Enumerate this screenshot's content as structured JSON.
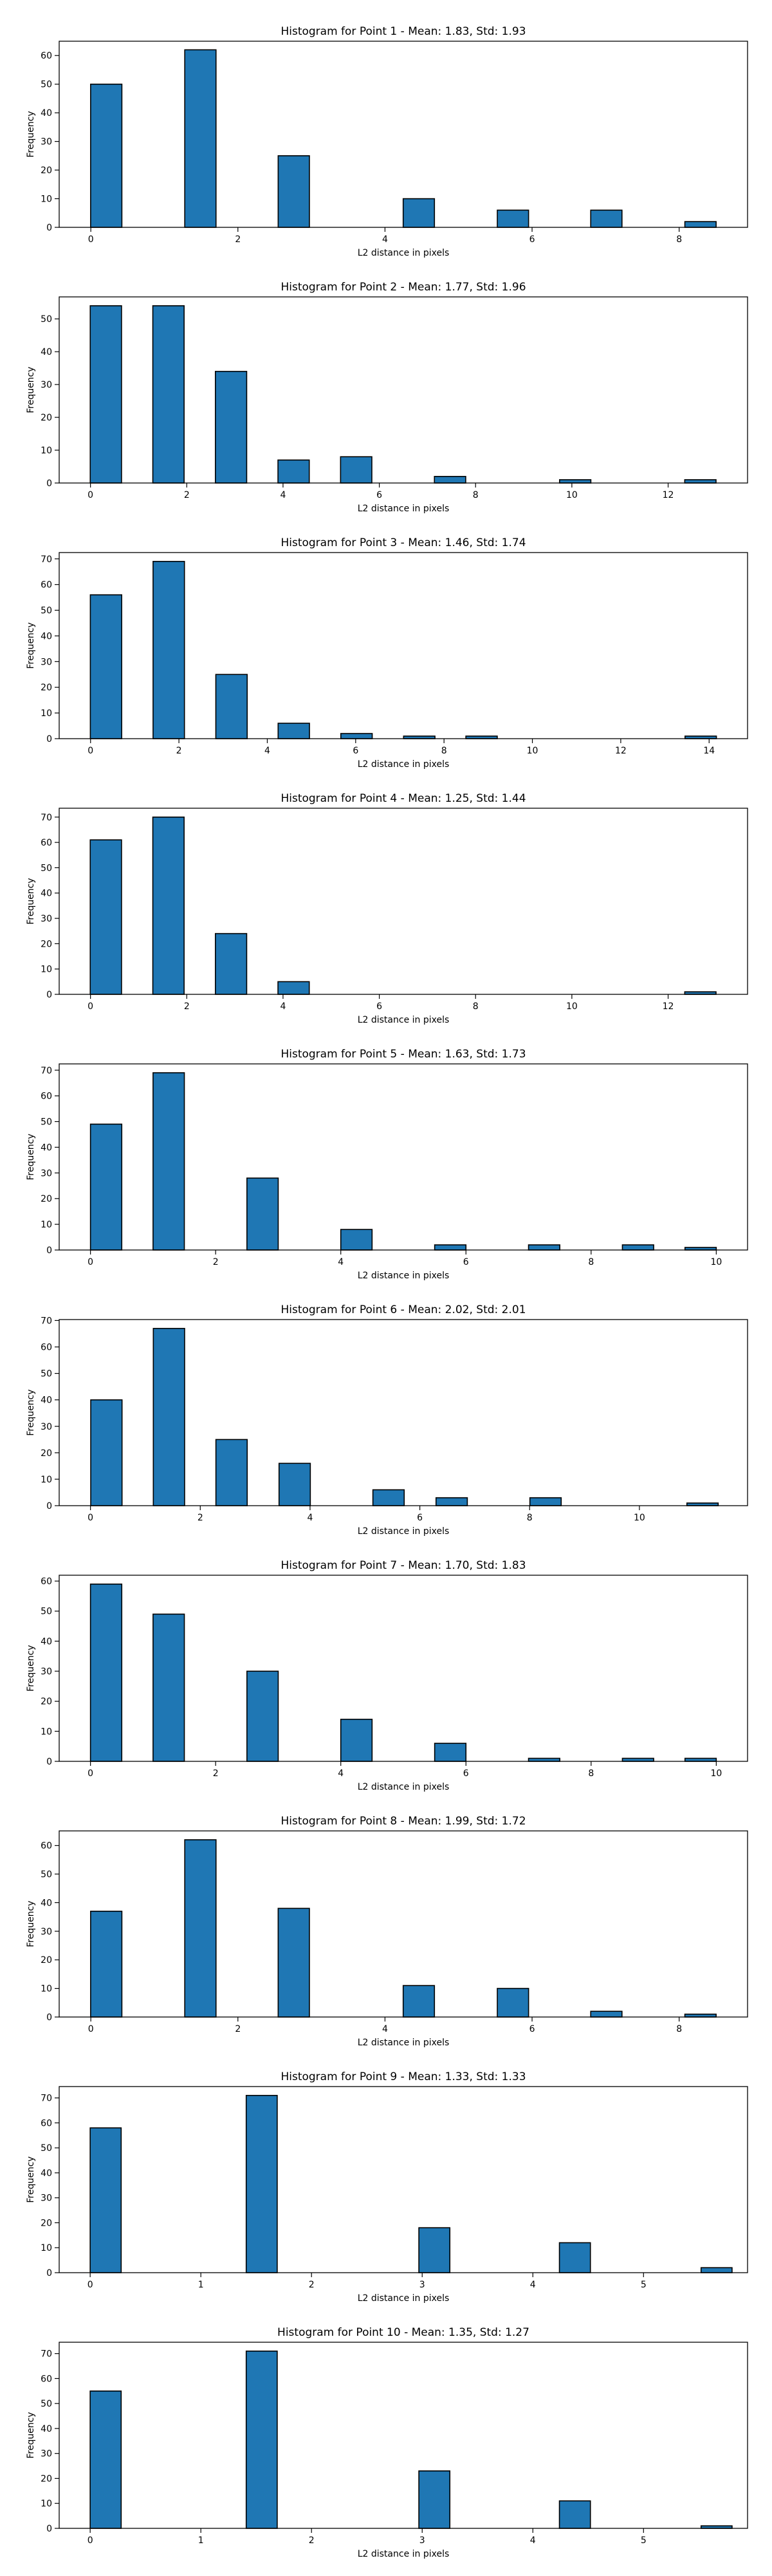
{
  "style": {
    "bar_color": "#1f77b4",
    "edge_color": "#000000",
    "background": "#ffffff"
  },
  "chart_data": [
    {
      "type": "bar",
      "title": "Histogram for Point 1 - Mean: 1.83, Std: 1.93",
      "xlabel": "L2 distance in pixels",
      "ylabel": "Frequency",
      "xlim": [
        -0.43,
        8.93
      ],
      "ylim": [
        0,
        65
      ],
      "xticks": [
        0,
        2,
        4,
        6,
        8
      ],
      "yticks": [
        0,
        10,
        20,
        30,
        40,
        50,
        60
      ],
      "grid": false,
      "bar_width": 0.425,
      "x": [
        0.21,
        1.49,
        2.76,
        4.46,
        5.74,
        7.01,
        8.29
      ],
      "values": [
        50,
        62,
        25,
        10,
        6,
        6,
        2
      ]
    },
    {
      "type": "bar",
      "title": "Histogram for Point 2 - Mean: 1.77, Std: 1.96",
      "xlabel": "L2 distance in pixels",
      "ylabel": "Frequency",
      "xlim": [
        -0.65,
        13.65
      ],
      "ylim": [
        0,
        56.7
      ],
      "xticks": [
        0,
        2,
        4,
        6,
        8,
        10,
        12
      ],
      "yticks": [
        0,
        10,
        20,
        30,
        40,
        50
      ],
      "grid": false,
      "bar_width": 0.65,
      "x": [
        0.32,
        1.62,
        2.92,
        4.22,
        5.52,
        7.47,
        10.07,
        12.67
      ],
      "values": [
        54,
        54,
        34,
        7,
        8,
        2,
        1,
        1
      ]
    },
    {
      "type": "bar",
      "title": "Histogram for Point 3 - Mean: 1.46, Std: 1.74",
      "xlabel": "L2 distance in pixels",
      "ylabel": "Frequency",
      "xlim": [
        -0.71,
        14.87
      ],
      "ylim": [
        0,
        72.45
      ],
      "xticks": [
        0,
        2,
        4,
        6,
        8,
        10,
        12,
        14
      ],
      "yticks": [
        0,
        10,
        20,
        30,
        40,
        50,
        60,
        70
      ],
      "grid": false,
      "bar_width": 0.71,
      "x": [
        0.35,
        1.77,
        3.19,
        4.6,
        6.02,
        7.44,
        8.85,
        13.81
      ],
      "values": [
        56,
        69,
        25,
        6,
        2,
        1,
        1,
        1
      ]
    },
    {
      "type": "bar",
      "title": "Histogram for Point 4 - Mean: 1.25, Std: 1.44",
      "xlabel": "L2 distance in pixels",
      "ylabel": "Frequency",
      "xlim": [
        -0.65,
        13.65
      ],
      "ylim": [
        0,
        73.5
      ],
      "xticks": [
        0,
        2,
        4,
        6,
        8,
        10,
        12
      ],
      "yticks": [
        0,
        10,
        20,
        30,
        40,
        50,
        60,
        70
      ],
      "grid": false,
      "bar_width": 0.65,
      "x": [
        0.32,
        1.62,
        2.92,
        4.22,
        12.67
      ],
      "values": [
        61,
        70,
        24,
        5,
        1
      ]
    },
    {
      "type": "bar",
      "title": "Histogram for Point 5 - Mean: 1.63, Std: 1.73",
      "xlabel": "L2 distance in pixels",
      "ylabel": "Frequency",
      "xlim": [
        -0.5,
        10.5
      ],
      "ylim": [
        0,
        72.45
      ],
      "xticks": [
        0,
        2,
        4,
        6,
        8,
        10
      ],
      "yticks": [
        0,
        10,
        20,
        30,
        40,
        50,
        60,
        70
      ],
      "grid": false,
      "bar_width": 0.5,
      "x": [
        0.25,
        1.25,
        2.75,
        4.25,
        5.75,
        7.25,
        8.75,
        9.75
      ],
      "values": [
        49,
        69,
        28,
        8,
        2,
        2,
        2,
        1
      ]
    },
    {
      "type": "bar",
      "title": "Histogram for Point 6 - Mean: 2.02, Std: 2.01",
      "xlabel": "L2 distance in pixels",
      "ylabel": "Frequency",
      "xlim": [
        -0.57,
        11.97
      ],
      "ylim": [
        0,
        70.35
      ],
      "xticks": [
        0,
        2,
        4,
        6,
        8,
        10
      ],
      "yticks": [
        0,
        10,
        20,
        30,
        40,
        50,
        60,
        70
      ],
      "grid": false,
      "bar_width": 0.57,
      "x": [
        0.29,
        1.43,
        2.57,
        3.72,
        5.43,
        6.58,
        8.29,
        11.15
      ],
      "values": [
        40,
        67,
        25,
        16,
        6,
        3,
        3,
        1
      ]
    },
    {
      "type": "bar",
      "title": "Histogram for Point 7 - Mean: 1.70, Std: 1.83",
      "xlabel": "L2 distance in pixels",
      "ylabel": "Frequency",
      "xlim": [
        -0.5,
        10.5
      ],
      "ylim": [
        0,
        61.95
      ],
      "xticks": [
        0,
        2,
        4,
        6,
        8,
        10
      ],
      "yticks": [
        0,
        10,
        20,
        30,
        40,
        50,
        60
      ],
      "grid": false,
      "bar_width": 0.5,
      "x": [
        0.25,
        1.25,
        2.75,
        4.25,
        5.75,
        7.25,
        8.75,
        9.75
      ],
      "values": [
        59,
        49,
        30,
        14,
        6,
        1,
        1,
        1
      ]
    },
    {
      "type": "bar",
      "title": "Histogram for Point 8 - Mean: 1.99, Std: 1.72",
      "xlabel": "L2 distance in pixels",
      "ylabel": "Frequency",
      "xlim": [
        -0.43,
        8.93
      ],
      "ylim": [
        0,
        65.1
      ],
      "xticks": [
        0,
        2,
        4,
        6,
        8
      ],
      "yticks": [
        0,
        10,
        20,
        30,
        40,
        50,
        60
      ],
      "grid": false,
      "bar_width": 0.425,
      "x": [
        0.21,
        1.49,
        2.76,
        4.46,
        5.74,
        7.01,
        8.29
      ],
      "values": [
        37,
        62,
        38,
        11,
        10,
        2,
        1
      ]
    },
    {
      "type": "bar",
      "title": "Histogram for Point 9 - Mean: 1.33, Std: 1.33",
      "xlabel": "L2 distance in pixels",
      "ylabel": "Frequency",
      "xlim": [
        -0.28,
        5.94
      ],
      "ylim": [
        0,
        74.55
      ],
      "xticks": [
        0,
        1,
        2,
        3,
        4,
        5
      ],
      "yticks": [
        0,
        10,
        20,
        30,
        40,
        50,
        60,
        70
      ],
      "grid": false,
      "bar_width": 0.28,
      "x": [
        0.14,
        1.55,
        3.11,
        4.38,
        5.66
      ],
      "values": [
        58,
        71,
        18,
        12,
        2
      ]
    },
    {
      "type": "bar",
      "title": "Histogram for Point 10 - Mean: 1.35, Std: 1.27",
      "xlabel": "L2 distance in pixels",
      "ylabel": "Frequency",
      "xlim": [
        -0.28,
        5.94
      ],
      "ylim": [
        0,
        74.55
      ],
      "xticks": [
        0,
        1,
        2,
        3,
        4,
        5
      ],
      "yticks": [
        0,
        10,
        20,
        30,
        40,
        50,
        60,
        70
      ],
      "grid": false,
      "bar_width": 0.28,
      "x": [
        0.14,
        1.55,
        3.11,
        4.38,
        5.66
      ],
      "values": [
        55,
        71,
        23,
        11,
        1
      ]
    }
  ]
}
